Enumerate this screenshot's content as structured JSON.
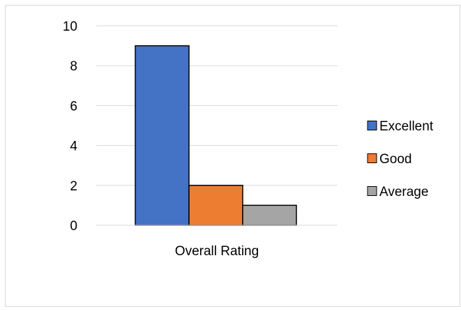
{
  "chart_data": {
    "type": "bar",
    "categories": [
      "Overall Rating"
    ],
    "series": [
      {
        "name": "Excellent",
        "values": [
          9
        ],
        "color": "#4472C4"
      },
      {
        "name": "Good",
        "values": [
          2
        ],
        "color": "#ED7D31"
      },
      {
        "name": "Average",
        "values": [
          1
        ],
        "color": "#A5A5A5"
      }
    ],
    "ylim": [
      0,
      10
    ],
    "yticks": [
      "0",
      "2",
      "4",
      "6",
      "8",
      "10"
    ],
    "grid": true,
    "legend_position": "right"
  }
}
